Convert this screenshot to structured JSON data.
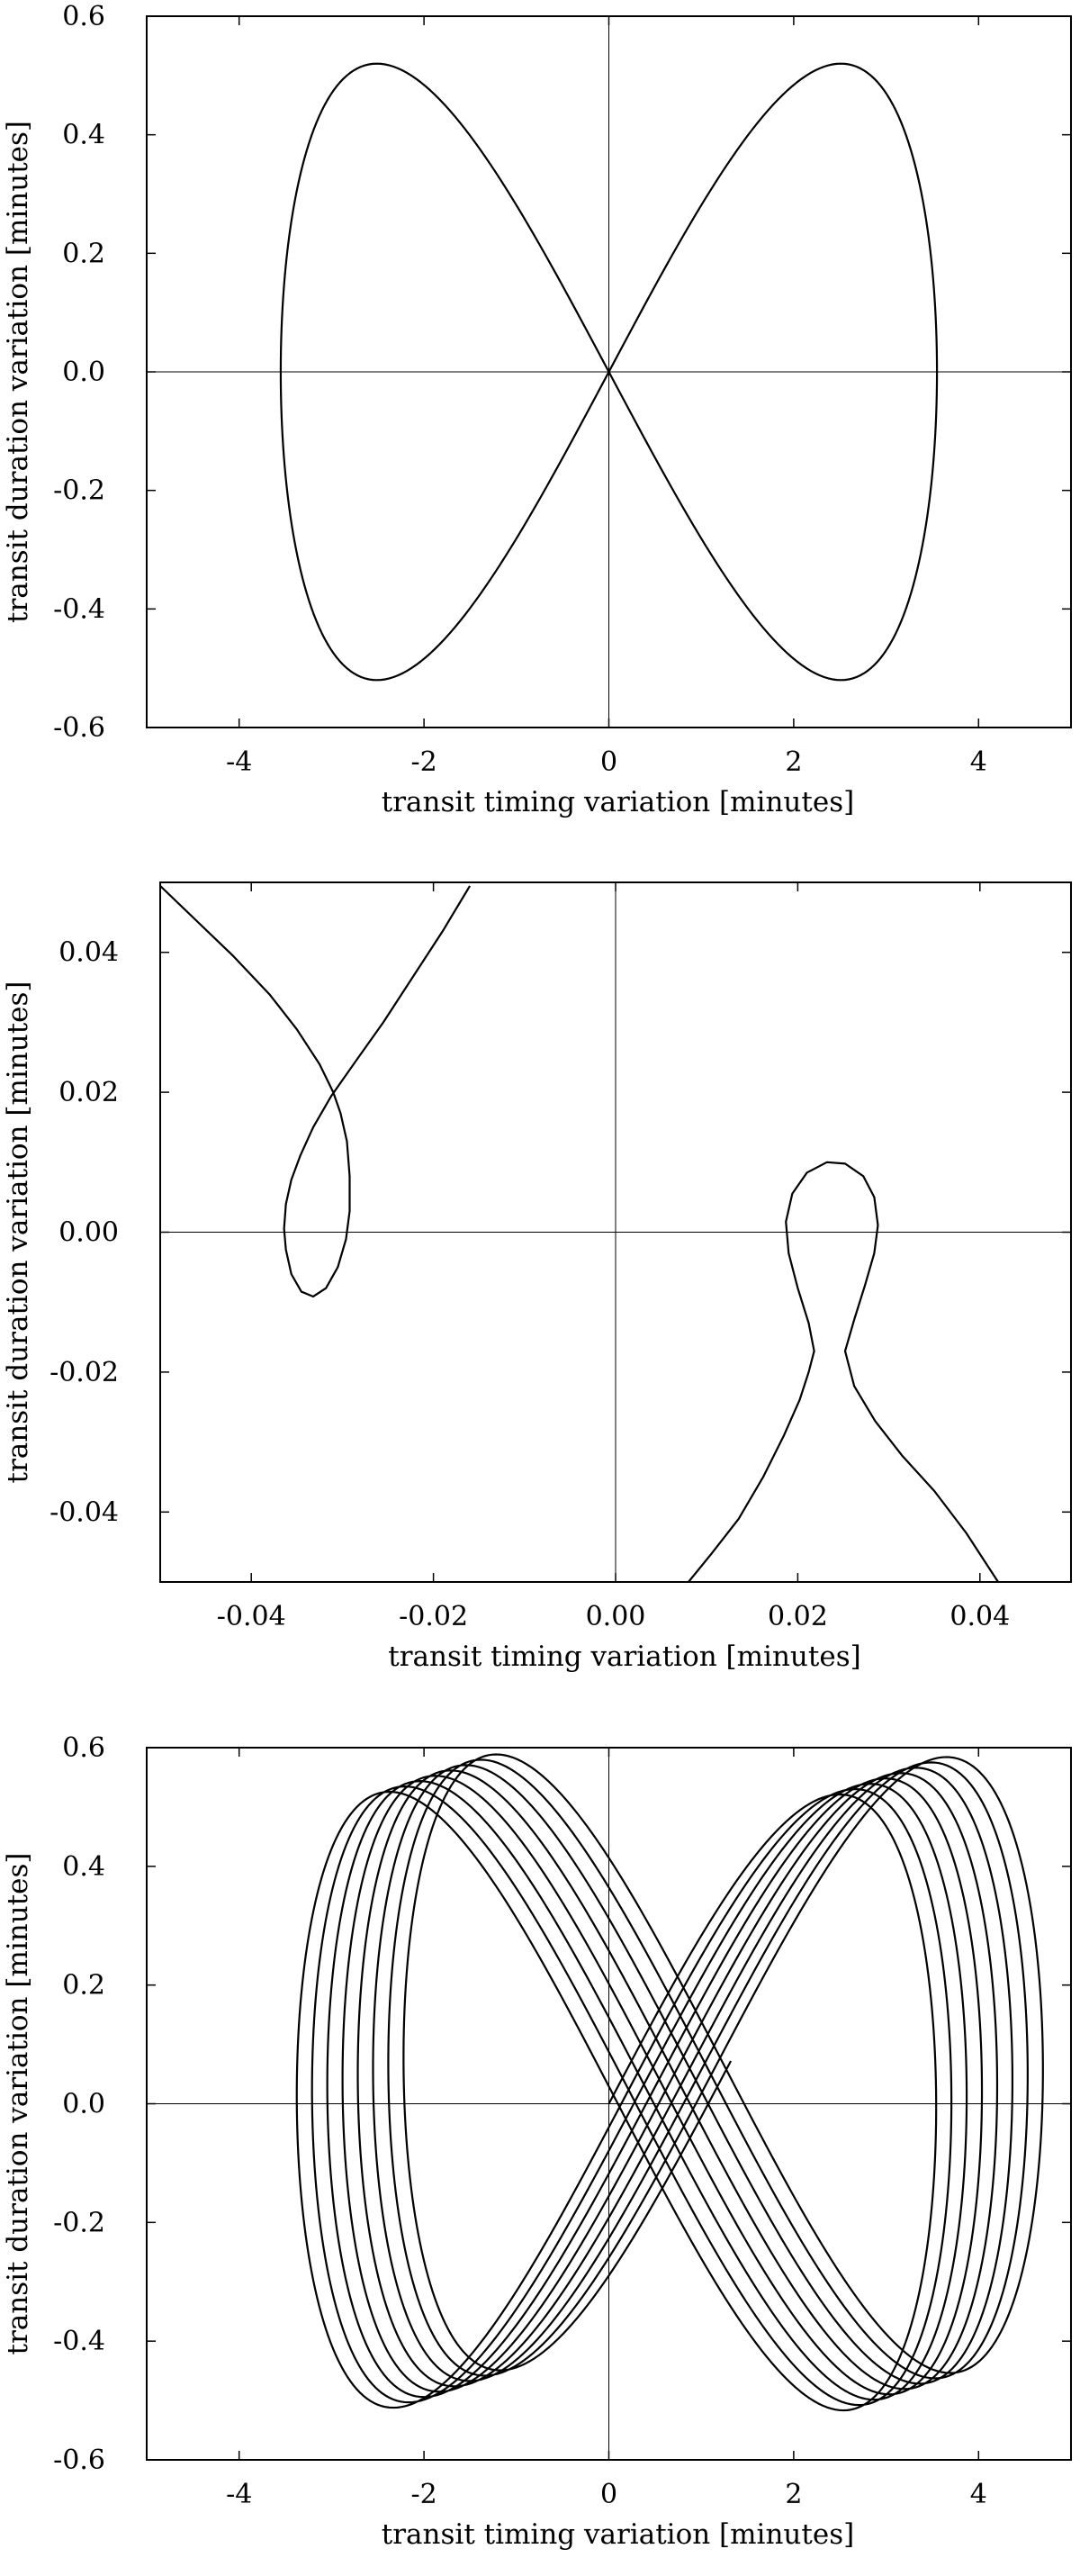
{
  "chart_data": [
    {
      "type": "line",
      "title": "",
      "xlabel": "transit timing variation [minutes]",
      "ylabel": "transit duration variation [minutes]",
      "xlim": [
        -5,
        5
      ],
      "ylim": [
        -0.6,
        0.6
      ],
      "xticks": [
        "-4",
        "-2",
        "0",
        "2",
        "4"
      ],
      "yticks": [
        "-0.6",
        "-0.4",
        "-0.2",
        "0.0",
        "0.2",
        "0.4",
        "0.6"
      ],
      "grid": false,
      "zero_lines": true,
      "series": [
        {
          "shape": "figure-eight",
          "x_amplitude": 3.55,
          "y_amplitude": 0.52,
          "n_loops": 1,
          "x_drift_per_loop": 0.0,
          "y_drift_per_loop": 0.0
        }
      ]
    },
    {
      "type": "line",
      "title": "",
      "xlabel": "transit timing variation [minutes]",
      "ylabel": "transit duration variation [minutes]",
      "xlim": [
        -0.05,
        0.05
      ],
      "ylim": [
        -0.05,
        0.05
      ],
      "xticks": [
        "-0.04",
        "-0.02",
        "0.00",
        "0.02",
        "0.04"
      ],
      "yticks": [
        "-0.04",
        "-0.02",
        "0.00",
        "0.02",
        "0.04"
      ],
      "grid": false,
      "zero_lines": true,
      "series": [
        {
          "name": "",
          "points": [
            [
              -0.05,
              0.0495
            ],
            [
              -0.046,
              0.0445
            ],
            [
              -0.042,
              0.0395
            ],
            [
              -0.038,
              0.034
            ],
            [
              -0.035,
              0.029
            ],
            [
              -0.0325,
              0.024
            ],
            [
              -0.031,
              0.02
            ],
            [
              -0.0302,
              0.017
            ],
            [
              -0.0295,
              0.013
            ],
            [
              -0.0292,
              0.008
            ],
            [
              -0.0292,
              0.003
            ],
            [
              -0.0296,
              -0.001
            ],
            [
              -0.0305,
              -0.005
            ],
            [
              -0.0318,
              -0.008
            ],
            [
              -0.0332,
              -0.0092
            ],
            [
              -0.0345,
              -0.0085
            ],
            [
              -0.0356,
              -0.006
            ],
            [
              -0.0362,
              -0.0025
            ],
            [
              -0.0364,
              0.0005
            ],
            [
              -0.0362,
              0.004
            ],
            [
              -0.0356,
              0.0075
            ],
            [
              -0.0346,
              0.011
            ],
            [
              -0.0332,
              0.015
            ],
            [
              -0.0312,
              0.0195
            ],
            [
              -0.0285,
              0.0245
            ],
            [
              -0.0255,
              0.03
            ],
            [
              -0.0225,
              0.036
            ],
            [
              -0.019,
              0.043
            ],
            [
              -0.016,
              0.0495
            ]
          ]
        },
        {
          "name": "",
          "points": [
            [
              0.008,
              -0.05
            ],
            [
              0.0105,
              -0.046
            ],
            [
              0.0135,
              -0.041
            ],
            [
              0.0162,
              -0.035
            ],
            [
              0.0185,
              -0.029
            ],
            [
              0.0202,
              -0.024
            ],
            [
              0.0212,
              -0.02
            ],
            [
              0.0218,
              -0.017
            ],
            [
              0.0218,
              -0.017
            ],
            [
              0.0212,
              -0.013
            ],
            [
              0.02,
              -0.008
            ],
            [
              0.019,
              -0.003
            ],
            [
              0.0187,
              0.0015
            ],
            [
              0.0194,
              0.0055
            ],
            [
              0.021,
              0.0085
            ],
            [
              0.0232,
              0.01
            ],
            [
              0.0252,
              0.0098
            ],
            [
              0.0272,
              0.008
            ],
            [
              0.0284,
              0.005
            ],
            [
              0.0288,
              0.001
            ],
            [
              0.0284,
              -0.003
            ],
            [
              0.0274,
              -0.0075
            ],
            [
              0.0262,
              -0.0125
            ],
            [
              0.0252,
              -0.017
            ],
            [
              0.0262,
              -0.022
            ],
            [
              0.0285,
              -0.027
            ],
            [
              0.0315,
              -0.032
            ],
            [
              0.035,
              -0.037
            ],
            [
              0.0385,
              -0.043
            ],
            [
              0.042,
              -0.05
            ]
          ]
        }
      ]
    },
    {
      "type": "line",
      "title": "",
      "xlabel": "transit timing variation [minutes]",
      "ylabel": "transit duration variation [minutes]",
      "xlim": [
        -5,
        5
      ],
      "ylim": [
        -0.6,
        0.6
      ],
      "xticks": [
        "-4",
        "-2",
        "0",
        "2",
        "4"
      ],
      "yticks": [
        "-0.6",
        "-0.4",
        "-0.2",
        "0.0",
        "0.2",
        "0.4",
        "0.6"
      ],
      "grid": false,
      "zero_lines": true,
      "series": [
        {
          "shape": "figure-eight",
          "x_amplitude": 3.5,
          "y_amplitude": 0.52,
          "n_loops": 8,
          "x_drift_per_loop": 0.165,
          "y_drift_per_loop": 0.009
        }
      ]
    }
  ]
}
